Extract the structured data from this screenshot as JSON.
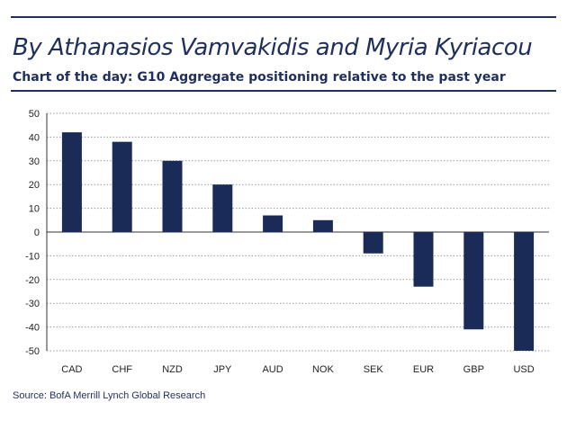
{
  "header": {
    "byline": "By Athanasios Vamvakidis and Myria Kyriacou",
    "title": "Chart of the day: G10 Aggregate positioning relative to the past year"
  },
  "source": "Source: BofA Merrill Lynch Global Research",
  "colors": {
    "bar": "#1a2b57",
    "text": "#1f2f5c",
    "grid": "#9a9a9a",
    "axis": "#333333"
  },
  "chart_data": {
    "type": "bar",
    "categories": [
      "CAD",
      "CHF",
      "NZD",
      "JPY",
      "AUD",
      "NOK",
      "SEK",
      "EUR",
      "GBP",
      "USD"
    ],
    "values": [
      42,
      38,
      30,
      20,
      7,
      5,
      -9,
      -23,
      -41,
      -50
    ],
    "ylim": [
      -50,
      50
    ],
    "yticks": [
      50,
      40,
      30,
      20,
      10,
      0,
      -10,
      -20,
      -30,
      -40,
      -50
    ],
    "grid": true,
    "legend": "none"
  }
}
